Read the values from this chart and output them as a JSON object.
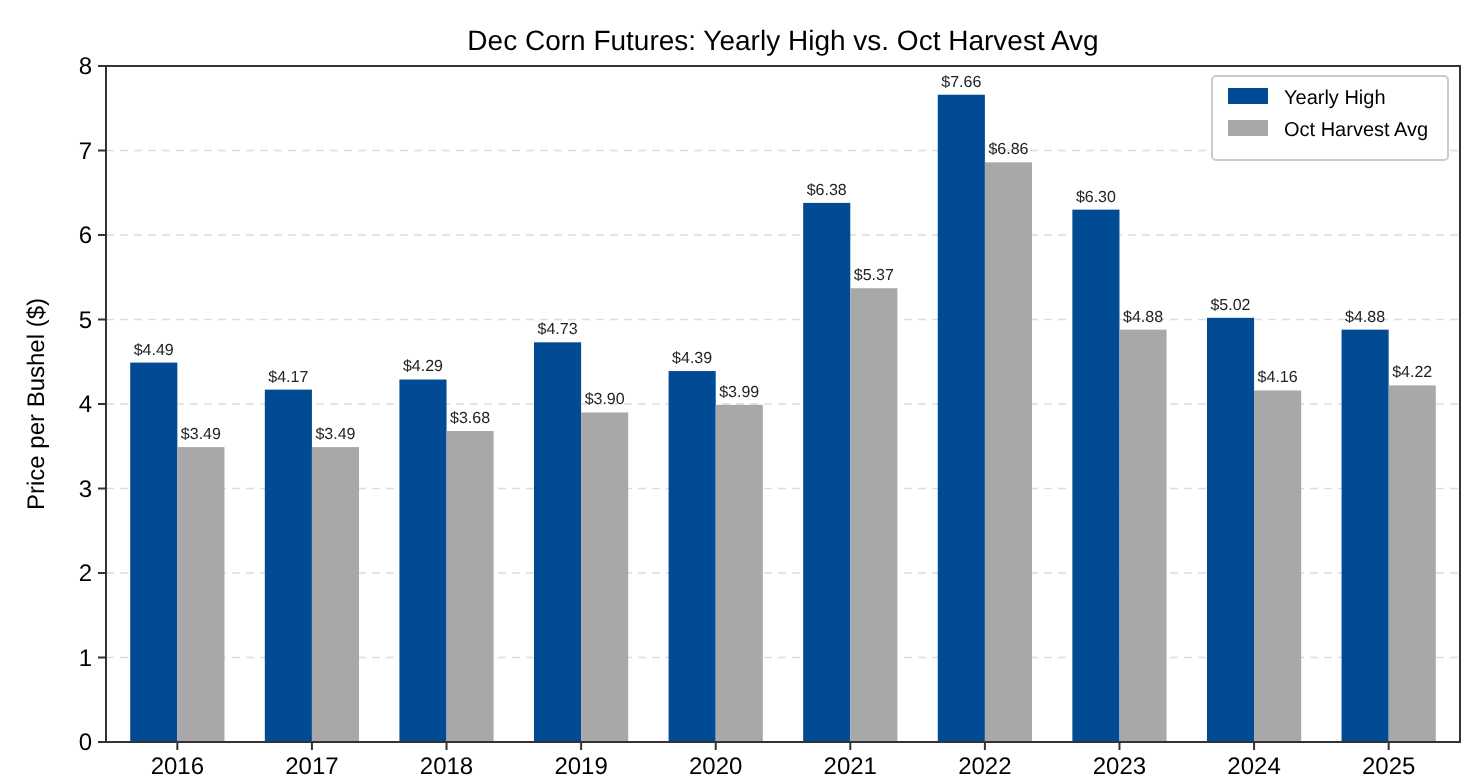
{
  "chart_data": {
    "type": "bar",
    "title": "Dec Corn Futures: Yearly High vs. Oct Harvest Avg",
    "ylabel": "Price per Bushel ($)",
    "categories": [
      "2016",
      "2017",
      "2018",
      "2019",
      "2020",
      "2021",
      "2022",
      "2023",
      "2024",
      "2025"
    ],
    "series": [
      {
        "name": "Yearly High",
        "color": "#004b93",
        "values": [
          4.49,
          4.17,
          4.29,
          4.73,
          4.39,
          6.38,
          7.66,
          6.3,
          5.02,
          4.88
        ],
        "value_labels": [
          "$4.49",
          "$4.17",
          "$4.29",
          "$4.73",
          "$4.39",
          "$6.38",
          "$7.66",
          "$6.30",
          "$5.02",
          "$4.88"
        ]
      },
      {
        "name": "Oct Harvest Avg",
        "color": "#a8a8a8",
        "values": [
          3.49,
          3.49,
          3.68,
          3.9,
          3.99,
          5.37,
          6.86,
          4.88,
          4.16,
          4.22
        ],
        "value_labels": [
          "$3.49",
          "$3.49",
          "$3.68",
          "$3.90",
          "$3.99",
          "$5.37",
          "$6.86",
          "$4.88",
          "$4.16",
          "$4.22"
        ]
      }
    ],
    "ylim": [
      0,
      8
    ],
    "yticks": [
      0,
      1,
      2,
      3,
      4,
      5,
      6,
      7,
      8
    ],
    "grid": "y",
    "legend": "top right"
  }
}
